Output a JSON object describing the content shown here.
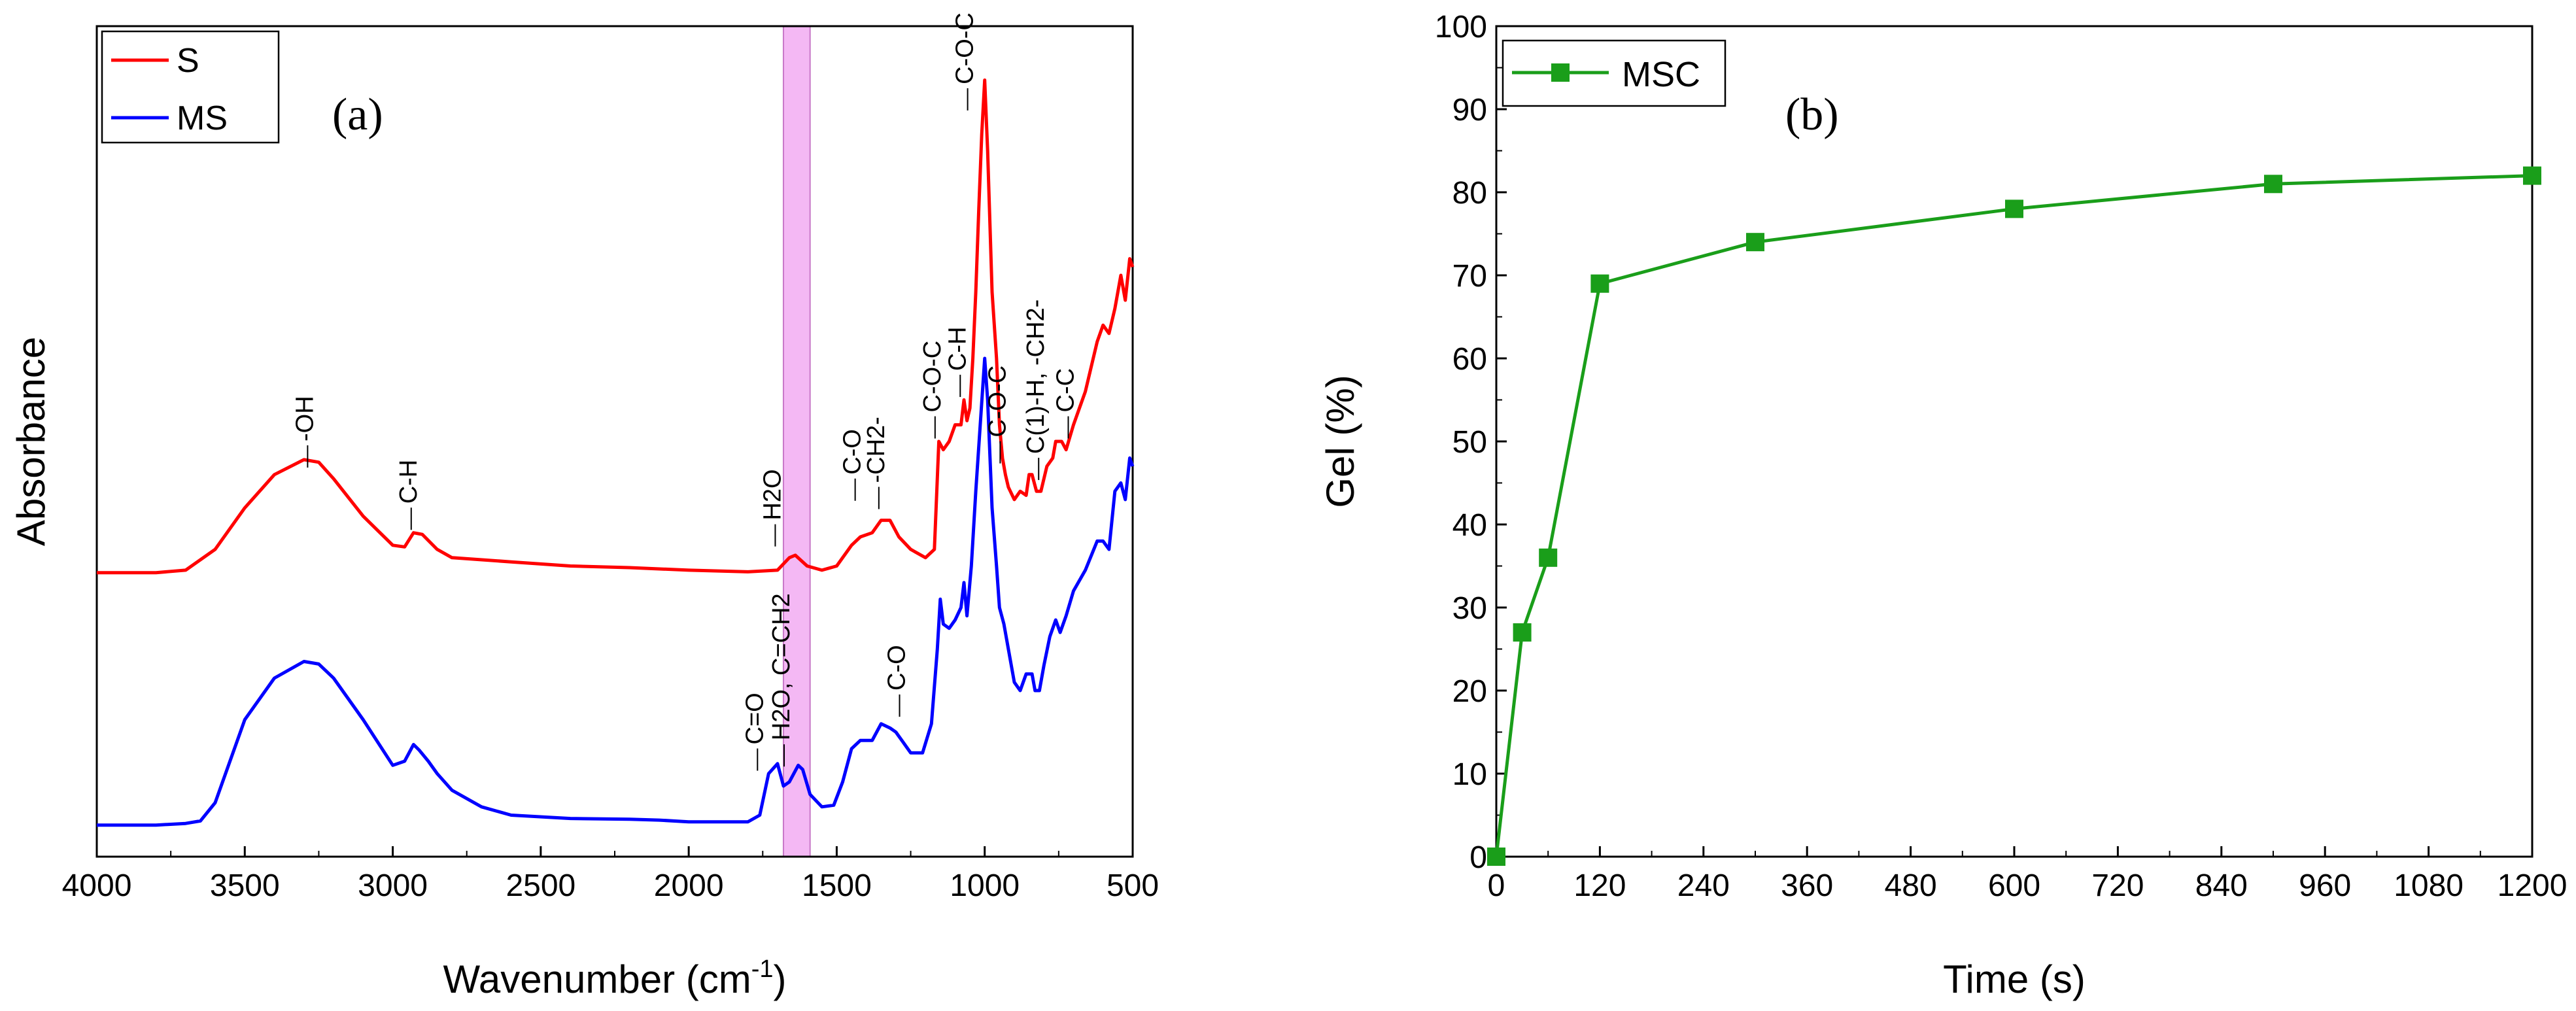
{
  "chart_data": [
    {
      "id": "a",
      "type": "line",
      "panel_label": "(a)",
      "xlabel": "Wavenumber (cm",
      "xlabel_sup": "-1",
      "xlabel_end": ")",
      "ylabel": "Absorbance",
      "xlim": [
        4000,
        500
      ],
      "ylim": [
        0,
        1
      ],
      "y_ticks_shown": false,
      "x_ticks": [
        {
          "v": 4000,
          "label": "4000"
        },
        {
          "v": 3500,
          "label": "3500"
        },
        {
          "v": 3000,
          "label": "3000"
        },
        {
          "v": 2500,
          "label": "2500"
        },
        {
          "v": 2000,
          "label": "2000"
        },
        {
          "v": 1500,
          "label": "1500"
        },
        {
          "v": 1000,
          "label": "1000"
        },
        {
          "v": 500,
          "label": "500"
        }
      ],
      "highlight_band": {
        "from": 1680,
        "to": 1590,
        "color": "#f4b8f4"
      },
      "legend": [
        {
          "name": "S",
          "color": "#ff0000"
        },
        {
          "name": "MS",
          "color": "#0000ff"
        }
      ],
      "series": [
        {
          "name": "S",
          "color": "#ff0000",
          "points": [
            [
              4000,
              0.342
            ],
            [
              3800,
              0.342
            ],
            [
              3700,
              0.345
            ],
            [
              3600,
              0.37
            ],
            [
              3500,
              0.42
            ],
            [
              3400,
              0.46
            ],
            [
              3300,
              0.478
            ],
            [
              3250,
              0.475
            ],
            [
              3200,
              0.455
            ],
            [
              3100,
              0.41
            ],
            [
              3000,
              0.375
            ],
            [
              2960,
              0.373
            ],
            [
              2930,
              0.39
            ],
            [
              2900,
              0.388
            ],
            [
              2850,
              0.37
            ],
            [
              2800,
              0.36
            ],
            [
              2600,
              0.355
            ],
            [
              2400,
              0.35
            ],
            [
              2200,
              0.348
            ],
            [
              2000,
              0.345
            ],
            [
              1800,
              0.343
            ],
            [
              1700,
              0.345
            ],
            [
              1660,
              0.36
            ],
            [
              1640,
              0.363
            ],
            [
              1600,
              0.35
            ],
            [
              1550,
              0.345
            ],
            [
              1500,
              0.35
            ],
            [
              1450,
              0.375
            ],
            [
              1420,
              0.385
            ],
            [
              1380,
              0.39
            ],
            [
              1350,
              0.405
            ],
            [
              1320,
              0.405
            ],
            [
              1290,
              0.385
            ],
            [
              1250,
              0.37
            ],
            [
              1200,
              0.36
            ],
            [
              1170,
              0.37
            ],
            [
              1155,
              0.5
            ],
            [
              1140,
              0.49
            ],
            [
              1120,
              0.5
            ],
            [
              1100,
              0.52
            ],
            [
              1080,
              0.52
            ],
            [
              1070,
              0.55
            ],
            [
              1060,
              0.525
            ],
            [
              1050,
              0.54
            ],
            [
              1040,
              0.6
            ],
            [
              1030,
              0.68
            ],
            [
              1020,
              0.78
            ],
            [
              1010,
              0.87
            ],
            [
              1000,
              0.935
            ],
            [
              990,
              0.85
            ],
            [
              975,
              0.68
            ],
            [
              960,
              0.6
            ],
            [
              950,
              0.52
            ],
            [
              940,
              0.48
            ],
            [
              930,
              0.46
            ],
            [
              920,
              0.445
            ],
            [
              900,
              0.43
            ],
            [
              880,
              0.44
            ],
            [
              860,
              0.435
            ],
            [
              850,
              0.46
            ],
            [
              840,
              0.46
            ],
            [
              825,
              0.44
            ],
            [
              810,
              0.44
            ],
            [
              790,
              0.47
            ],
            [
              770,
              0.48
            ],
            [
              760,
              0.5
            ],
            [
              740,
              0.5
            ],
            [
              725,
              0.49
            ],
            [
              700,
              0.52
            ],
            [
              660,
              0.56
            ],
            [
              620,
              0.62
            ],
            [
              600,
              0.64
            ],
            [
              580,
              0.63
            ],
            [
              560,
              0.66
            ],
            [
              540,
              0.7
            ],
            [
              525,
              0.67
            ],
            [
              510,
              0.72
            ],
            [
              500,
              0.71
            ]
          ]
        },
        {
          "name": "MS",
          "color": "#0000ff",
          "points": [
            [
              4000,
              0.038
            ],
            [
              3800,
              0.038
            ],
            [
              3700,
              0.04
            ],
            [
              3650,
              0.043
            ],
            [
              3600,
              0.065
            ],
            [
              3500,
              0.165
            ],
            [
              3400,
              0.215
            ],
            [
              3300,
              0.235
            ],
            [
              3250,
              0.232
            ],
            [
              3200,
              0.215
            ],
            [
              3100,
              0.165
            ],
            [
              3000,
              0.11
            ],
            [
              2960,
              0.115
            ],
            [
              2930,
              0.135
            ],
            [
              2910,
              0.128
            ],
            [
              2880,
              0.115
            ],
            [
              2850,
              0.1
            ],
            [
              2800,
              0.08
            ],
            [
              2700,
              0.06
            ],
            [
              2600,
              0.05
            ],
            [
              2400,
              0.046
            ],
            [
              2200,
              0.045
            ],
            [
              2100,
              0.044
            ],
            [
              2000,
              0.042
            ],
            [
              1900,
              0.042
            ],
            [
              1800,
              0.042
            ],
            [
              1760,
              0.05
            ],
            [
              1730,
              0.1
            ],
            [
              1700,
              0.112
            ],
            [
              1680,
              0.085
            ],
            [
              1660,
              0.09
            ],
            [
              1630,
              0.11
            ],
            [
              1615,
              0.105
            ],
            [
              1590,
              0.075
            ],
            [
              1550,
              0.06
            ],
            [
              1510,
              0.062
            ],
            [
              1480,
              0.09
            ],
            [
              1450,
              0.13
            ],
            [
              1420,
              0.14
            ],
            [
              1400,
              0.14
            ],
            [
              1380,
              0.14
            ],
            [
              1350,
              0.16
            ],
            [
              1320,
              0.155
            ],
            [
              1300,
              0.15
            ],
            [
              1280,
              0.14
            ],
            [
              1250,
              0.125
            ],
            [
              1210,
              0.125
            ],
            [
              1180,
              0.16
            ],
            [
              1160,
              0.25
            ],
            [
              1150,
              0.31
            ],
            [
              1140,
              0.28
            ],
            [
              1120,
              0.275
            ],
            [
              1100,
              0.285
            ],
            [
              1080,
              0.3
            ],
            [
              1070,
              0.33
            ],
            [
              1060,
              0.29
            ],
            [
              1045,
              0.35
            ],
            [
              1030,
              0.44
            ],
            [
              1015,
              0.52
            ],
            [
              1000,
              0.6
            ],
            [
              990,
              0.55
            ],
            [
              975,
              0.42
            ],
            [
              960,
              0.35
            ],
            [
              950,
              0.3
            ],
            [
              935,
              0.28
            ],
            [
              920,
              0.25
            ],
            [
              900,
              0.21
            ],
            [
              880,
              0.2
            ],
            [
              860,
              0.22
            ],
            [
              840,
              0.22
            ],
            [
              830,
              0.2
            ],
            [
              815,
              0.2
            ],
            [
              800,
              0.23
            ],
            [
              780,
              0.265
            ],
            [
              760,
              0.285
            ],
            [
              745,
              0.27
            ],
            [
              725,
              0.29
            ],
            [
              700,
              0.32
            ],
            [
              660,
              0.345
            ],
            [
              620,
              0.38
            ],
            [
              600,
              0.38
            ],
            [
              580,
              0.37
            ],
            [
              560,
              0.44
            ],
            [
              540,
              0.45
            ],
            [
              525,
              0.43
            ],
            [
              510,
              0.48
            ],
            [
              500,
              0.47
            ]
          ]
        }
      ],
      "annotations": [
        {
          "text": "-OH",
          "at": [
            3270,
            0.5
          ],
          "rotate": -90
        },
        {
          "text": "C-H",
          "at": [
            2920,
            0.425
          ],
          "rotate": -90
        },
        {
          "text": "H2O",
          "at": [
            1690,
            0.405
          ],
          "rotate": -90
        },
        {
          "text": "C-O",
          "at": [
            1420,
            0.46
          ],
          "rotate": -90
        },
        {
          "text": "-CH2-",
          "at": [
            1340,
            0.45
          ],
          "rotate": -90
        },
        {
          "text": "C-O-C",
          "at": [
            1150,
            0.535
          ],
          "rotate": -90
        },
        {
          "text": "C-H",
          "at": [
            1065,
            0.585
          ],
          "rotate": -90
        },
        {
          "text": "C-O-C",
          "at": [
            1040,
            0.93
          ],
          "rotate": -90
        },
        {
          "text": "C-O-C",
          "at": [
            930,
            0.505
          ],
          "rotate": -90
        },
        {
          "text": "C(1)-H, -CH2-",
          "at": [
            800,
            0.485
          ],
          "rotate": -90
        },
        {
          "text": "C-C",
          "at": [
            700,
            0.535
          ],
          "rotate": -90
        },
        {
          "text": "C=O",
          "at": [
            1750,
            0.135
          ],
          "rotate": -90
        },
        {
          "text": "H2O, C=CH2",
          "at": [
            1660,
            0.14
          ],
          "rotate": -90
        },
        {
          "text": "C-O",
          "at": [
            1270,
            0.2
          ],
          "rotate": -90
        }
      ]
    },
    {
      "id": "b",
      "type": "line",
      "panel_label": "(b)",
      "xlabel": "Time (s)",
      "ylabel": "Gel (%)",
      "xlim": [
        0,
        1200
      ],
      "ylim": [
        0,
        100
      ],
      "x_ticks": [
        "0",
        "120",
        "240",
        "360",
        "480",
        "600",
        "720",
        "840",
        "960",
        "1080",
        "1200"
      ],
      "y_ticks": [
        "0",
        "10",
        "20",
        "30",
        "40",
        "50",
        "60",
        "70",
        "80",
        "90",
        "100"
      ],
      "legend": [
        {
          "name": "MSC",
          "color": "#1a9e1a"
        }
      ],
      "series": [
        {
          "name": "MSC",
          "color": "#1a9e1a",
          "marker": "square",
          "x": [
            0,
            30,
            60,
            120,
            300,
            600,
            900,
            1200
          ],
          "y": [
            0,
            27,
            36,
            69,
            74,
            78,
            81,
            82
          ]
        }
      ]
    }
  ]
}
